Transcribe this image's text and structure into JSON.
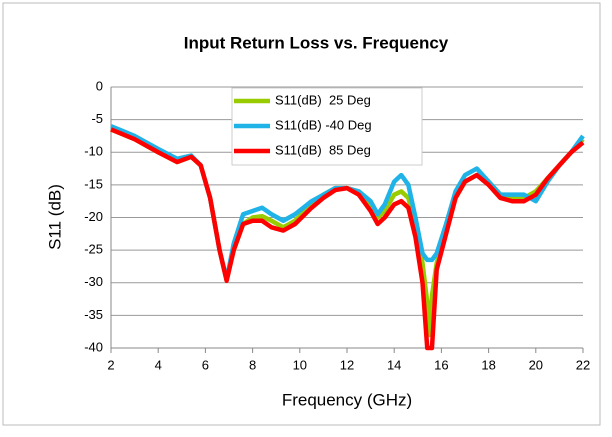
{
  "chart_data": {
    "type": "line",
    "title": "Input Return Loss vs. Frequency",
    "x_label": "Frequency (GHz)",
    "y_label": "S11 (dB)",
    "x": [
      2,
      3,
      4,
      4.8,
      5.4,
      5.8,
      6.2,
      6.6,
      6.9,
      7.2,
      7.6,
      8,
      8.4,
      8.8,
      9.3,
      9.8,
      10.5,
      11,
      11.5,
      12,
      12.5,
      13,
      13.3,
      13.6,
      14,
      14.3,
      14.6,
      14.9,
      15.2,
      15.4,
      15.5,
      15.6,
      15.8,
      16.2,
      16.6,
      17,
      17.5,
      18,
      18.5,
      19,
      19.5,
      20,
      20.5,
      21,
      21.5,
      22
    ],
    "series": [
      {
        "name": "S11(dB)  25 Deg",
        "color": "#99cc00",
        "values": [
          -6.5,
          -8,
          -10,
          -11.5,
          -10.7,
          -12,
          -17,
          -25,
          -29.5,
          -25,
          -21,
          -20,
          -19.8,
          -20.5,
          -21.5,
          -20.5,
          -18,
          -16.5,
          -15.5,
          -15.5,
          -16,
          -18.5,
          -20,
          -19,
          -16.5,
          -16,
          -17,
          -21,
          -27,
          -33,
          -38,
          -32,
          -27,
          -22,
          -17,
          -14.5,
          -13.5,
          -14.5,
          -16.5,
          -17,
          -17,
          -16,
          -14,
          -12,
          -10,
          -8
        ]
      },
      {
        "name": "S11(dB) -40 Deg",
        "color": "#1fb3e8",
        "values": [
          -6,
          -7.5,
          -9.5,
          -11,
          -10.5,
          -12,
          -17,
          -25,
          -29.5,
          -24,
          -19.5,
          -19,
          -18.5,
          -19.5,
          -20.5,
          -19.5,
          -17.5,
          -16.5,
          -15.5,
          -15.5,
          -16,
          -17.5,
          -19.5,
          -18,
          -14.5,
          -13.5,
          -15,
          -20,
          -25.5,
          -26.5,
          -26.5,
          -26.5,
          -25.5,
          -21,
          -16,
          -13.5,
          -12.5,
          -14.5,
          -16.5,
          -16.5,
          -16.5,
          -17.5,
          -14.5,
          -12,
          -10,
          -7.5
        ]
      },
      {
        "name": "S11(dB)  85 Deg",
        "color": "#ff0000",
        "values": [
          -6.5,
          -8,
          -10,
          -11.5,
          -10.7,
          -12,
          -17,
          -25,
          -29.7,
          -25,
          -21,
          -20.5,
          -20.5,
          -21.5,
          -22,
          -21,
          -18.5,
          -17,
          -15.8,
          -15.5,
          -16.5,
          -19,
          -21,
          -20,
          -18,
          -17.5,
          -18.5,
          -23,
          -30,
          -40,
          -40,
          -40,
          -28,
          -22.5,
          -17,
          -14.5,
          -13.5,
          -15,
          -17,
          -17.5,
          -17.5,
          -16.5,
          -14,
          -12,
          -10,
          -8.5
        ]
      }
    ],
    "xlim": [
      2,
      22
    ],
    "xticks": [
      2,
      4,
      6,
      8,
      10,
      12,
      14,
      16,
      18,
      20,
      22
    ],
    "ylim": [
      -40,
      0
    ],
    "yticks": [
      0,
      -5,
      -10,
      -15,
      -20,
      -25,
      -30,
      -35,
      -40
    ],
    "grid": true,
    "legend": "top"
  }
}
